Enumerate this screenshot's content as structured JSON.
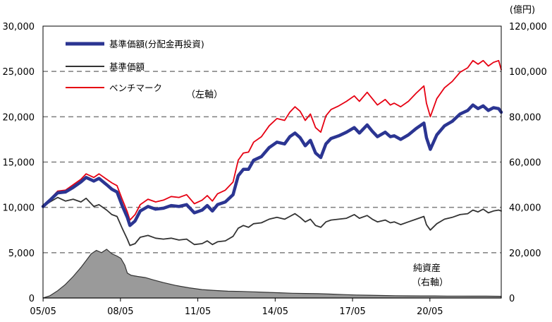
{
  "chart_data": {
    "type": "line",
    "right_axis_unit": "(億円)",
    "left_axis_note": "（左軸）",
    "right_axis_note_line1": "純資産",
    "right_axis_note_line2": "（右軸）",
    "x_ticks": [
      "05/05",
      "08/05",
      "11/05",
      "14/05",
      "17/05",
      "20/05"
    ],
    "x_range": [
      2005.33,
      2023.1
    ],
    "y_left_ticks": [
      "0",
      "5,000",
      "10,000",
      "15,000",
      "20,000",
      "25,000",
      "30,000"
    ],
    "y_left_range": [
      0,
      30000
    ],
    "y_right_ticks": [
      "0",
      "20,000",
      "40,000",
      "60,000",
      "80,000",
      "100,000",
      "120,000"
    ],
    "y_right_range": [
      0,
      120000
    ],
    "grid": "horizontal dashed",
    "legend_position": "top-left",
    "colors": {
      "reinvested": "#2b3592",
      "nav": "#333333",
      "benchmark": "#e60012",
      "net_assets_fill": "#9a9a9a"
    },
    "series": [
      {
        "key": "reinvested",
        "name": "基準価額(分配金再投資)",
        "axis": "left",
        "x": [
          2005.33,
          2005.6,
          2005.9,
          2006.2,
          2006.5,
          2006.8,
          2007.0,
          2007.3,
          2007.5,
          2007.8,
          2008.0,
          2008.2,
          2008.4,
          2008.6,
          2008.7,
          2008.9,
          2009.1,
          2009.4,
          2009.7,
          2010.0,
          2010.3,
          2010.6,
          2010.9,
          2011.2,
          2011.5,
          2011.7,
          2011.9,
          2012.1,
          2012.4,
          2012.7,
          2012.9,
          2013.1,
          2013.3,
          2013.5,
          2013.8,
          2014.1,
          2014.4,
          2014.7,
          2014.9,
          2015.1,
          2015.3,
          2015.5,
          2015.7,
          2015.9,
          2016.1,
          2016.3,
          2016.5,
          2016.8,
          2017.1,
          2017.4,
          2017.6,
          2017.9,
          2018.1,
          2018.3,
          2018.6,
          2018.8,
          2018.95,
          2019.2,
          2019.5,
          2019.8,
          2020.1,
          2020.2,
          2020.35,
          2020.6,
          2020.9,
          2021.2,
          2021.5,
          2021.8,
          2022.0,
          2022.2,
          2022.4,
          2022.6,
          2022.8,
          2023.0,
          2023.1
        ],
        "values": [
          10100,
          10800,
          11600,
          11700,
          12200,
          12800,
          13300,
          12900,
          13200,
          12500,
          12000,
          11700,
          10200,
          8900,
          8000,
          8500,
          9600,
          10100,
          9800,
          9900,
          10200,
          10100,
          10300,
          9400,
          9700,
          10200,
          9600,
          10300,
          10600,
          11400,
          13500,
          14200,
          14200,
          15200,
          15600,
          16600,
          17200,
          17000,
          17800,
          18200,
          17700,
          16800,
          17400,
          16000,
          15500,
          17000,
          17600,
          17900,
          18300,
          18800,
          18200,
          19100,
          18400,
          17800,
          18300,
          17800,
          17900,
          17500,
          18000,
          18700,
          19300,
          17700,
          16400,
          18000,
          19000,
          19500,
          20300,
          20700,
          21300,
          20900,
          21200,
          20700,
          21000,
          20900,
          20500
        ]
      },
      {
        "key": "nav",
        "name": "基準価額",
        "axis": "left",
        "x": [
          2005.33,
          2005.6,
          2005.9,
          2006.2,
          2006.5,
          2006.8,
          2007.0,
          2007.3,
          2007.5,
          2007.8,
          2008.0,
          2008.2,
          2008.4,
          2008.6,
          2008.7,
          2008.9,
          2009.1,
          2009.4,
          2009.7,
          2010.0,
          2010.3,
          2010.6,
          2010.9,
          2011.2,
          2011.5,
          2011.7,
          2011.9,
          2012.1,
          2012.4,
          2012.7,
          2012.9,
          2013.1,
          2013.3,
          2013.5,
          2013.8,
          2014.1,
          2014.4,
          2014.7,
          2014.9,
          2015.1,
          2015.3,
          2015.5,
          2015.7,
          2015.9,
          2016.1,
          2016.3,
          2016.5,
          2016.8,
          2017.1,
          2017.4,
          2017.6,
          2017.9,
          2018.1,
          2018.3,
          2018.6,
          2018.8,
          2018.95,
          2019.2,
          2019.5,
          2019.8,
          2020.1,
          2020.2,
          2020.35,
          2020.6,
          2020.9,
          2021.2,
          2021.5,
          2021.8,
          2022.0,
          2022.2,
          2022.4,
          2022.6,
          2022.8,
          2023.0,
          2023.1
        ],
        "values": [
          10100,
          10600,
          11100,
          10700,
          10900,
          10600,
          11000,
          10100,
          10300,
          9700,
          9200,
          9000,
          7700,
          6500,
          5800,
          6000,
          6700,
          6900,
          6600,
          6500,
          6600,
          6400,
          6500,
          5900,
          6000,
          6300,
          5900,
          6200,
          6300,
          6800,
          7700,
          8000,
          7800,
          8200,
          8300,
          8700,
          8900,
          8700,
          9000,
          9300,
          8900,
          8400,
          8700,
          8000,
          7800,
          8400,
          8600,
          8700,
          8800,
          9200,
          8800,
          9100,
          8700,
          8400,
          8600,
          8300,
          8400,
          8100,
          8400,
          8700,
          9000,
          8100,
          7500,
          8200,
          8700,
          8900,
          9200,
          9300,
          9700,
          9500,
          9800,
          9400,
          9600,
          9700,
          9600
        ]
      },
      {
        "key": "benchmark",
        "name": "ベンチマーク",
        "axis": "left",
        "x": [
          2005.33,
          2005.6,
          2005.9,
          2006.2,
          2006.5,
          2006.8,
          2007.0,
          2007.3,
          2007.5,
          2007.8,
          2008.0,
          2008.2,
          2008.4,
          2008.6,
          2008.7,
          2008.9,
          2009.1,
          2009.4,
          2009.7,
          2010.0,
          2010.3,
          2010.6,
          2010.9,
          2011.2,
          2011.5,
          2011.7,
          2011.9,
          2012.1,
          2012.4,
          2012.7,
          2012.9,
          2013.1,
          2013.3,
          2013.5,
          2013.8,
          2014.1,
          2014.4,
          2014.7,
          2014.9,
          2015.1,
          2015.3,
          2015.5,
          2015.7,
          2015.9,
          2016.1,
          2016.3,
          2016.5,
          2016.8,
          2017.1,
          2017.4,
          2017.6,
          2017.9,
          2018.1,
          2018.3,
          2018.6,
          2018.8,
          2018.95,
          2019.2,
          2019.5,
          2019.8,
          2020.1,
          2020.2,
          2020.35,
          2020.6,
          2020.9,
          2021.2,
          2021.5,
          2021.8,
          2022.0,
          2022.2,
          2022.4,
          2022.6,
          2022.8,
          2023.0,
          2023.1
        ],
        "values": [
          10200,
          10900,
          11800,
          11900,
          12500,
          13100,
          13700,
          13300,
          13700,
          13100,
          12700,
          12400,
          10900,
          9500,
          8600,
          9200,
          10300,
          10900,
          10600,
          10800,
          11200,
          11100,
          11400,
          10400,
          10800,
          11300,
          10700,
          11500,
          11900,
          12800,
          15200,
          16000,
          16100,
          17200,
          17800,
          19000,
          19800,
          19600,
          20500,
          21100,
          20600,
          19600,
          20300,
          18800,
          18300,
          20100,
          20800,
          21200,
          21700,
          22300,
          21700,
          22700,
          22000,
          21300,
          21900,
          21300,
          21500,
          21100,
          21700,
          22600,
          23400,
          21500,
          20000,
          22000,
          23200,
          23900,
          24900,
          25400,
          26200,
          25800,
          26200,
          25600,
          26000,
          26200,
          25200
        ]
      },
      {
        "key": "net_assets",
        "name": "純資産",
        "axis": "right",
        "x": [
          2005.33,
          2005.6,
          2005.9,
          2006.2,
          2006.5,
          2006.8,
          2007.0,
          2007.2,
          2007.4,
          2007.6,
          2007.8,
          2008.0,
          2008.2,
          2008.35,
          2008.5,
          2008.6,
          2008.75,
          2009.0,
          2009.3,
          2009.6,
          2010.0,
          2010.5,
          2011.0,
          2011.5,
          2012.0,
          2012.5,
          2013.0,
          2013.5,
          2014.0,
          2014.5,
          2015.0,
          2015.5,
          2016.0,
          2016.5,
          2017.0,
          2017.5,
          2018.0,
          2018.5,
          2019.0,
          2019.5,
          2020.0,
          2020.5,
          2021.0,
          2021.5,
          2022.0,
          2022.5,
          2023.1
        ],
        "values": [
          0,
          1000,
          3200,
          6000,
          9500,
          13500,
          16500,
          19500,
          21000,
          20000,
          21500,
          19500,
          18500,
          17500,
          14500,
          11000,
          10000,
          9500,
          9000,
          8000,
          6800,
          5500,
          4500,
          3700,
          3300,
          3000,
          2900,
          2700,
          2500,
          2300,
          2100,
          2000,
          1900,
          1700,
          1500,
          1300,
          1200,
          1100,
          1000,
          950,
          900,
          900,
          850,
          850,
          800,
          800,
          750
        ]
      }
    ]
  }
}
